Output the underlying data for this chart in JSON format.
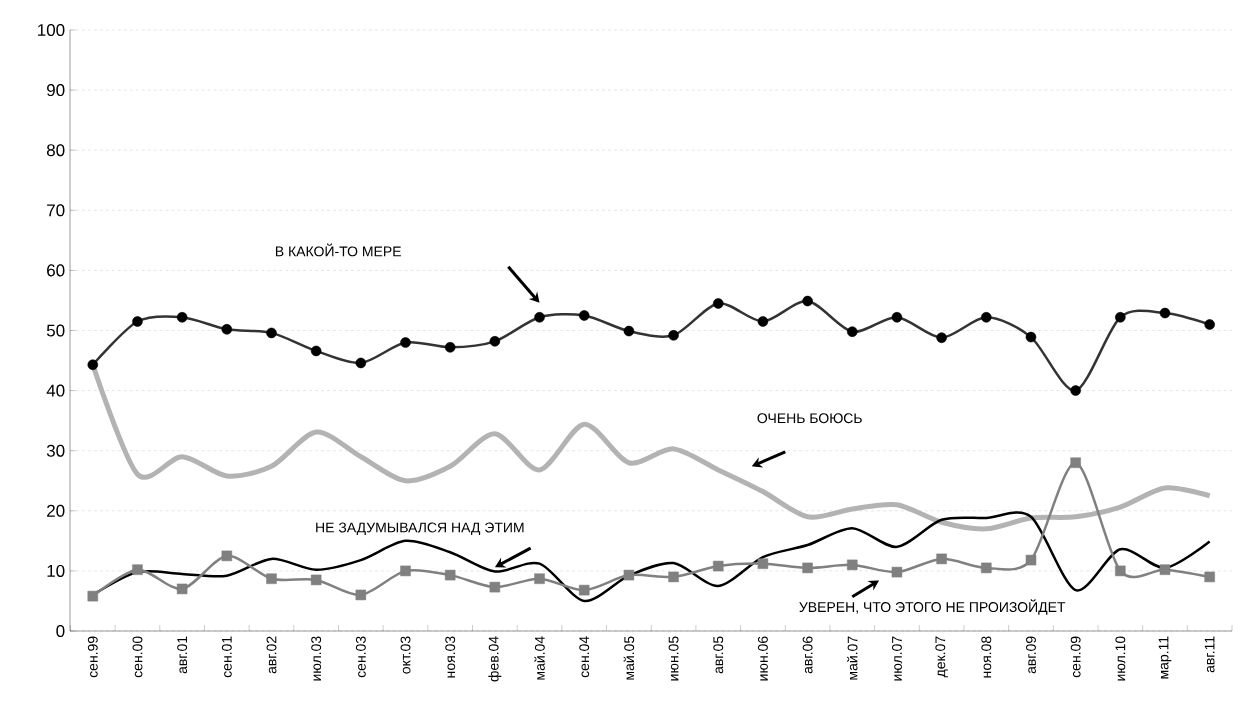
{
  "chart_data": {
    "type": "line",
    "categories": [
      "сен.99",
      "сен.00",
      "авг.01",
      "сен.01",
      "авг.02",
      "июл.03",
      "сен.03",
      "окт.03",
      "ноя.03",
      "фев.04",
      "май.04",
      "сен.04",
      "май.05",
      "июн.05",
      "авг.05",
      "июн.06",
      "авг.06",
      "май.07",
      "июл.07",
      "дек.07",
      "ноя.08",
      "авг.09",
      "сен.09",
      "июл.10",
      "мар.11",
      "авг.11"
    ],
    "series": [
      {
        "color": "#333333",
        "marker": "circle",
        "values": [
          44.3,
          51.5,
          52.2,
          50.2,
          49.6,
          46.6,
          44.6,
          48,
          47.2,
          48.2,
          52.2,
          52.5,
          49.9,
          49.2,
          54.5,
          51.5,
          54.9,
          49.8,
          52.2,
          48.8,
          52.2,
          48.9,
          40,
          52.2,
          52.9,
          51
        ]
      },
      {
        "color": "#b3b3b3",
        "marker": "none",
        "values": [
          44.3,
          26.1,
          29,
          25.8,
          27.4,
          33.1,
          29,
          25,
          27.4,
          32.8,
          26.8,
          34.4,
          28,
          30.3,
          26.8,
          23.2,
          19,
          20.3,
          21,
          18.1,
          17,
          18.8,
          19,
          20.6,
          23.8,
          22.5
        ]
      },
      {
        "color": "#000000",
        "marker": "none",
        "values": [
          6,
          9.8,
          9.5,
          9.2,
          12,
          10.2,
          11.8,
          15,
          13.1,
          9.9,
          11.2,
          5,
          9.2,
          11.3,
          7.5,
          12.3,
          14.3,
          17.1,
          14,
          18.5,
          18.8,
          19,
          6.8,
          13.6,
          10.5,
          14.9
        ]
      },
      {
        "color": "#808080",
        "marker": "square",
        "values": [
          5.8,
          10.2,
          7,
          12.5,
          8.7,
          8.5,
          6,
          10,
          9.3,
          7.3,
          8.7,
          6.8,
          9.3,
          9,
          10.8,
          11.2,
          10.5,
          11,
          9.8,
          12,
          10.5,
          11.8,
          28,
          10,
          10.2,
          9
        ]
      }
    ],
    "ylim": [
      0,
      100
    ],
    "yticks": [
      0,
      10,
      20,
      30,
      40,
      50,
      60,
      70,
      80,
      90,
      100
    ],
    "annotations": [
      "В КАКОЙ-ТО МЕРЕ",
      "ОЧЕНЬ БОЮСЬ",
      {
        "text": "НЕ ЗАДУМЫВАЛСЯ НАД ЭТИМ",
        "x": "фев.04",
        "y": 10.6
      },
      "УВЕРЕН, ЧТО ЭТОГО НЕ ПРОИЗОЙДЕТ"
    ],
    "grid": "y",
    "legend": false,
    "line_style": "solid"
  }
}
